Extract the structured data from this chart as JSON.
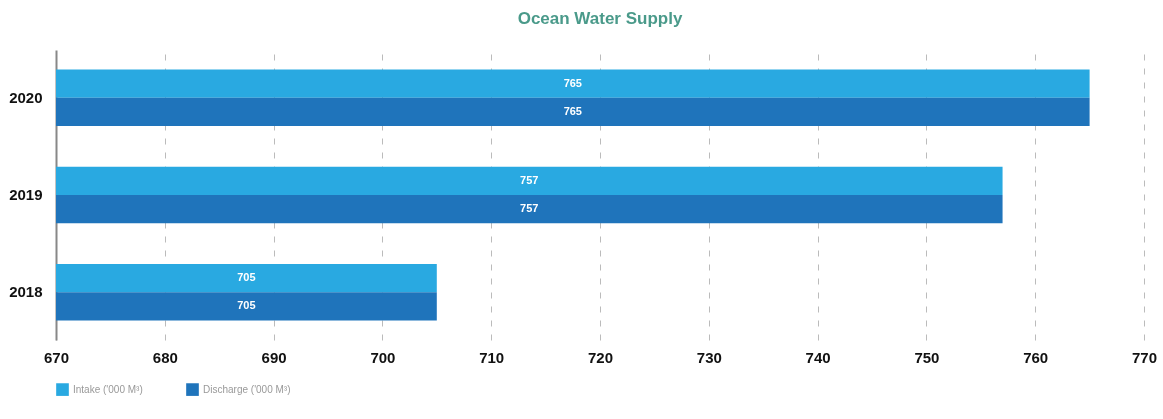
{
  "chart_data": {
    "type": "bar",
    "orientation": "horizontal",
    "title": "Ocean Water Supply",
    "categories": [
      "2020",
      "2019",
      "2018"
    ],
    "series": [
      {
        "name": "Intake  ('000 M³)",
        "color": "#29a9e1",
        "values": [
          765,
          757,
          705
        ]
      },
      {
        "name": "Discharge ('000 M³)",
        "color": "#1f74bb",
        "values": [
          765,
          757,
          705
        ]
      }
    ],
    "xlim": [
      670,
      770
    ],
    "xticks": [
      670,
      680,
      690,
      700,
      710,
      720,
      730,
      740,
      750,
      760,
      770
    ],
    "grid": "x",
    "legend": "bottom",
    "data_labels": true
  }
}
